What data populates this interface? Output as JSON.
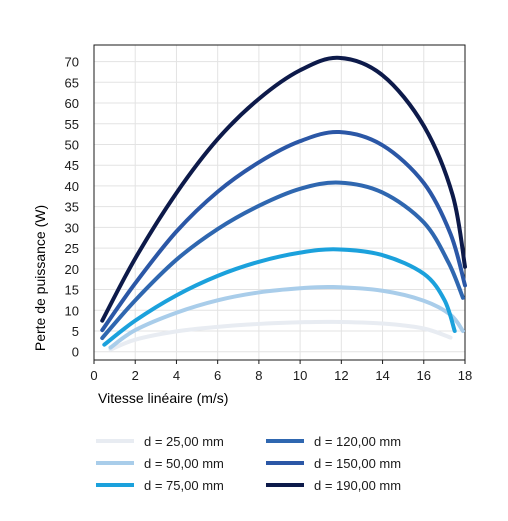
{
  "chart_data": {
    "type": "line",
    "xlabel": "Vitesse linéaire (m/s)",
    "ylabel": "Perte de puissance (W)",
    "xlim": [
      0,
      18
    ],
    "ylim": [
      -2,
      74
    ],
    "xticks": [
      "0",
      "2",
      "4",
      "6",
      "8",
      "10",
      "12",
      "14",
      "16",
      "18"
    ],
    "yticks": [
      "0",
      "5",
      "10",
      "15",
      "20",
      "25",
      "30",
      "35",
      "40",
      "45",
      "50",
      "55",
      "60",
      "65",
      "70"
    ],
    "grid": true,
    "legend_position": "bottom",
    "series": [
      {
        "name": "d = 25,00 mm",
        "color": "#e8ecf2",
        "x": [
          0.8,
          2,
          4,
          6,
          8,
          10,
          11.6,
          14,
          16,
          17.3
        ],
        "y": [
          0.5,
          2.9,
          4.9,
          6.0,
          6.7,
          7.1,
          7.2,
          6.8,
          5.6,
          3.4
        ]
      },
      {
        "name": "d = 50,00 mm",
        "color": "#a9cdea",
        "x": [
          0.8,
          2,
          4,
          6,
          8,
          10,
          11.6,
          14,
          16,
          17.3,
          17.9
        ],
        "y": [
          1.0,
          5.2,
          9.4,
          12.4,
          14.3,
          15.3,
          15.6,
          14.7,
          12.3,
          8.9,
          5.0
        ]
      },
      {
        "name": "d = 75,00 mm",
        "color": "#1ba1dc",
        "x": [
          0.5,
          2,
          4,
          6,
          8,
          10,
          11.8,
          14,
          16,
          17.0,
          17.5
        ],
        "y": [
          1.7,
          7.5,
          13.6,
          18.3,
          21.7,
          23.9,
          24.7,
          23.3,
          18.8,
          12.5,
          5.0
        ]
      },
      {
        "name": "d = 120,00 mm",
        "color": "#2f67b0",
        "x": [
          0.4,
          2,
          4,
          6,
          8,
          10,
          11.9,
          14,
          16,
          17.2,
          17.9
        ],
        "y": [
          3.3,
          12.4,
          22.2,
          29.6,
          35.2,
          39.3,
          40.8,
          38.4,
          31.2,
          21.5,
          13.0
        ]
      },
      {
        "name": "d = 150,00 mm",
        "color": "#2b57a6",
        "x": [
          0.4,
          2,
          4,
          6,
          8,
          10,
          11.9,
          14,
          16,
          17.3,
          18.0
        ],
        "y": [
          5.2,
          16.5,
          29.0,
          38.6,
          45.7,
          50.8,
          53.0,
          49.8,
          40.7,
          28.4,
          16.0
        ]
      },
      {
        "name": "d = 190,00 mm",
        "color": "#0d1a4a",
        "x": [
          0.4,
          2,
          4,
          6,
          8,
          10,
          11.9,
          14,
          16,
          17.4,
          18.0
        ],
        "y": [
          7.5,
          22.5,
          38.3,
          51.3,
          61.0,
          67.9,
          70.9,
          66.7,
          54.5,
          37.8,
          20.5
        ]
      }
    ]
  }
}
